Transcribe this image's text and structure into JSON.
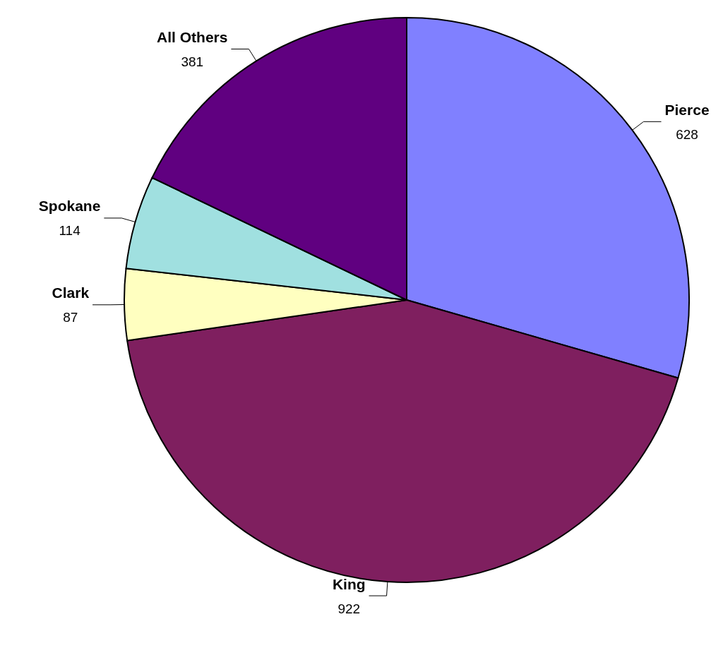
{
  "chart_data": {
    "type": "pie",
    "categories": [
      "Pierce",
      "King",
      "Clark",
      "Spokane",
      "All Others"
    ],
    "values": [
      628,
      922,
      87,
      114,
      381
    ],
    "colors": [
      "#8080ff",
      "#7f1f5f",
      "#ffffc0",
      "#a0e0e0",
      "#600080"
    ],
    "data_labels": true
  }
}
